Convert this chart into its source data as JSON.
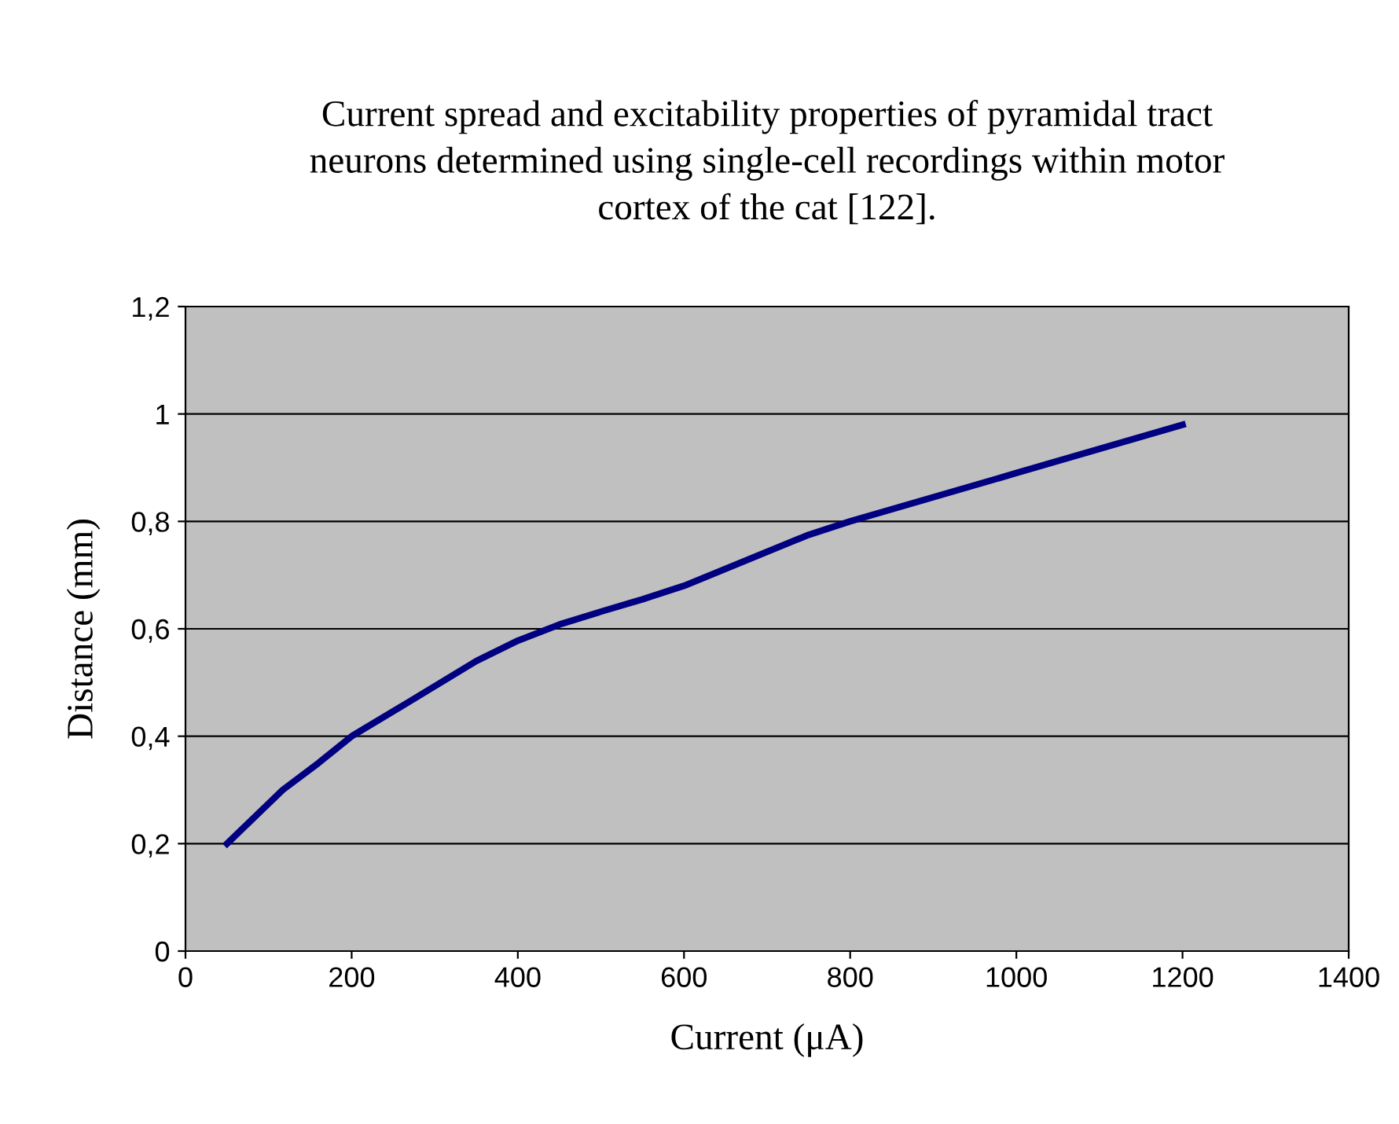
{
  "chart_data": {
    "type": "line",
    "title": "Current spread and excitability properties of pyramidal tract\nneurons determined using single-cell recordings within motor\ncortex of the cat [122].",
    "xlabel": "Current (μA)",
    "ylabel": "Distance (mm)",
    "x": [
      50,
      117,
      160,
      200,
      270,
      350,
      400,
      450,
      500,
      550,
      600,
      750,
      800,
      1000,
      1200
    ],
    "series": [
      {
        "color": "#000080",
        "values": [
          0.2,
          0.3,
          0.35,
          0.4,
          0.465,
          0.54,
          0.578,
          0.608,
          0.632,
          0.655,
          0.68,
          0.775,
          0.8,
          0.89,
          0.98
        ]
      }
    ],
    "xlim": [
      0,
      1400
    ],
    "xticks": [
      0,
      200,
      400,
      600,
      800,
      1000,
      1200,
      1400
    ],
    "ylim": [
      0,
      1.2
    ],
    "yticks": [
      0,
      {
        "value": 0.2,
        "label": "0,2"
      },
      {
        "value": 0.4,
        "label": "0,4"
      },
      {
        "value": 0.6,
        "label": "0,6"
      },
      {
        "value": 0.8,
        "label": "0,8"
      },
      1,
      {
        "value": 1.2,
        "label": "1,2"
      }
    ],
    "grid": "y",
    "legend": false,
    "marker": "none",
    "line_style": "solid"
  }
}
